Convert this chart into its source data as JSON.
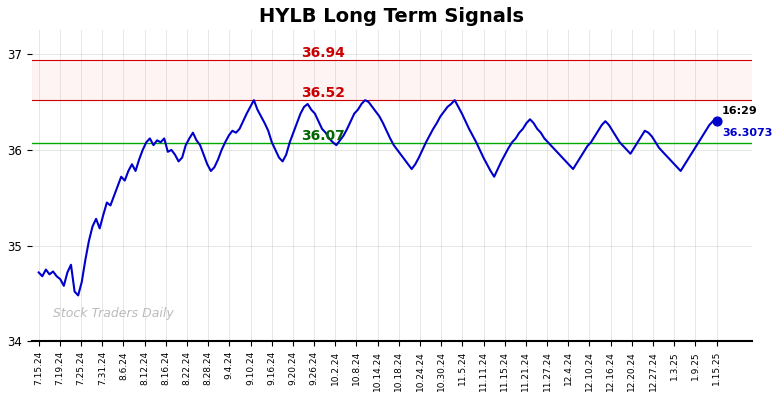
{
  "title": "HYLB Long Term Signals",
  "title_fontsize": 14,
  "title_fontweight": "bold",
  "line_color": "#0000cc",
  "line_width": 1.5,
  "background_color": "#ffffff",
  "grid_color": "#cccccc",
  "ylim": [
    34.0,
    37.25
  ],
  "yticks": [
    34,
    35,
    36,
    37
  ],
  "hline_green": 36.07,
  "hline_green_color": "#00aa00",
  "hline_red1": 36.52,
  "hline_red2": 36.94,
  "hline_red_color": "#cc0000",
  "hband_red_alpha": 0.12,
  "hband_red_color": "#ffaaaa",
  "label_36_94": "36.94",
  "label_36_52": "36.52",
  "label_36_07": "36.07",
  "label_time": "16:29",
  "label_price": "36.3073",
  "label_36_94_color": "#cc0000",
  "label_36_52_color": "#cc0000",
  "label_36_07_color": "#006600",
  "watermark": "Stock Traders Daily",
  "watermark_color": "#bbbbbb",
  "dot_color": "#0000cc",
  "dot_size": 40,
  "x_labels": [
    "7.15.24",
    "7.19.24",
    "7.25.24",
    "7.31.24",
    "8.6.24",
    "8.12.24",
    "8.16.24",
    "8.22.24",
    "8.28.24",
    "9.4.24",
    "9.10.24",
    "9.16.24",
    "9.20.24",
    "9.26.24",
    "10.2.24",
    "10.8.24",
    "10.14.24",
    "10.18.24",
    "10.24.24",
    "10.30.24",
    "11.5.24",
    "11.11.24",
    "11.15.24",
    "11.21.24",
    "11.27.24",
    "12.4.24",
    "12.10.24",
    "12.16.24",
    "12.20.24",
    "12.27.24",
    "1.3.25",
    "1.9.25",
    "1.15.25"
  ],
  "y_values": [
    34.72,
    34.68,
    34.75,
    34.7,
    34.73,
    34.68,
    34.65,
    34.58,
    34.72,
    34.8,
    34.52,
    34.48,
    34.62,
    34.85,
    35.05,
    35.2,
    35.28,
    35.18,
    35.32,
    35.45,
    35.42,
    35.52,
    35.62,
    35.72,
    35.68,
    35.78,
    35.85,
    35.78,
    35.9,
    36.0,
    36.08,
    36.12,
    36.05,
    36.1,
    36.08,
    36.12,
    35.98,
    36.0,
    35.95,
    35.88,
    35.92,
    36.05,
    36.12,
    36.18,
    36.1,
    36.05,
    35.95,
    35.85,
    35.78,
    35.82,
    35.9,
    36.0,
    36.08,
    36.15,
    36.2,
    36.18,
    36.22,
    36.3,
    36.38,
    36.45,
    36.52,
    36.42,
    36.35,
    36.28,
    36.2,
    36.08,
    36.0,
    35.92,
    35.88,
    35.95,
    36.08,
    36.18,
    36.28,
    36.38,
    36.45,
    36.48,
    36.42,
    36.38,
    36.3,
    36.22,
    36.18,
    36.12,
    36.08,
    36.05,
    36.1,
    36.15,
    36.22,
    36.3,
    36.38,
    36.42,
    36.48,
    36.52,
    36.5,
    36.45,
    36.4,
    36.35,
    36.28,
    36.2,
    36.12,
    36.05,
    36.0,
    35.95,
    35.9,
    35.85,
    35.8,
    35.85,
    35.92,
    36.0,
    36.08,
    36.15,
    36.22,
    36.28,
    36.35,
    36.4,
    36.45,
    36.48,
    36.52,
    36.45,
    36.38,
    36.3,
    36.22,
    36.15,
    36.08,
    36.0,
    35.92,
    35.85,
    35.78,
    35.72,
    35.8,
    35.88,
    35.95,
    36.02,
    36.08,
    36.12,
    36.18,
    36.22,
    36.28,
    36.32,
    36.28,
    36.22,
    36.18,
    36.12,
    36.08,
    36.04,
    36.0,
    35.96,
    35.92,
    35.88,
    35.84,
    35.8,
    35.86,
    35.92,
    35.98,
    36.04,
    36.08,
    36.14,
    36.2,
    36.26,
    36.3,
    36.26,
    36.2,
    36.14,
    36.08,
    36.04,
    36.0,
    35.96,
    36.02,
    36.08,
    36.14,
    36.2,
    36.18,
    36.14,
    36.08,
    36.02,
    35.98,
    35.94,
    35.9,
    35.86,
    35.82,
    35.78,
    35.84,
    35.9,
    35.96,
    36.02,
    36.08,
    36.14,
    36.2,
    36.26,
    36.3,
    36.3073
  ]
}
